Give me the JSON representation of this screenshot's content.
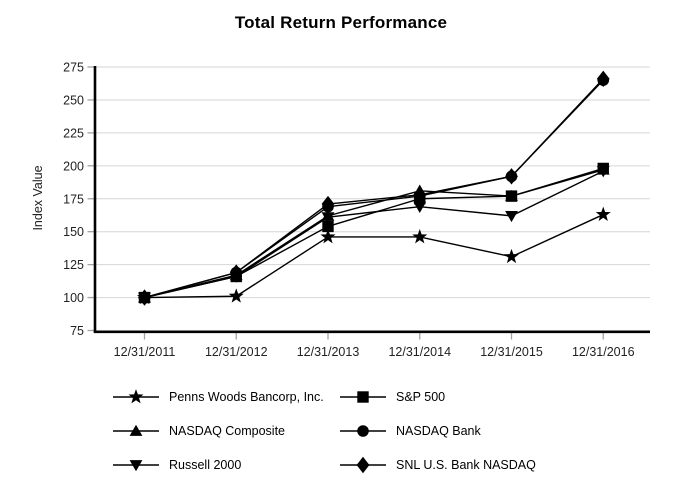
{
  "chart_data": {
    "type": "line",
    "title": "Total Return Performance",
    "xlabel": "",
    "ylabel": "Index Value",
    "x_labels": [
      "12/31/2011",
      "12/31/2012",
      "12/31/2013",
      "12/31/2014",
      "12/31/2015",
      "12/31/2016"
    ],
    "ylim": [
      75,
      275
    ],
    "yticks": [
      75,
      100,
      125,
      150,
      175,
      200,
      225,
      250,
      275
    ],
    "grid": "horizontal",
    "legend_position": "bottom-two-columns",
    "series": [
      {
        "name": "Penns Woods Bancorp, Inc.",
        "marker": "star",
        "values": [
          100,
          101,
          146,
          146,
          131,
          163
        ]
      },
      {
        "name": "S&P 500",
        "marker": "square",
        "values": [
          100,
          116,
          154,
          175,
          177,
          198
        ]
      },
      {
        "name": "NASDAQ Composite",
        "marker": "triangle-up",
        "values": [
          100,
          117,
          162,
          181,
          177,
          197
        ]
      },
      {
        "name": "NASDAQ Bank",
        "marker": "circle",
        "values": [
          100,
          119,
          169,
          177,
          192,
          265
        ]
      },
      {
        "name": "Russell 2000",
        "marker": "triangle-down",
        "values": [
          100,
          116,
          161,
          169,
          162,
          196
        ]
      },
      {
        "name": "SNL U.S. Bank NASDAQ",
        "marker": "diamond",
        "values": [
          100,
          119,
          171,
          178,
          192,
          266
        ]
      }
    ],
    "draw_order": [
      2,
      4,
      1,
      3,
      0,
      5
    ],
    "colors": {
      "line": "#000000",
      "marker": "#000000",
      "axis": "#000000",
      "grid": "#d6d6d6",
      "tick": "#a3a3a3",
      "background": "#ffffff"
    }
  }
}
